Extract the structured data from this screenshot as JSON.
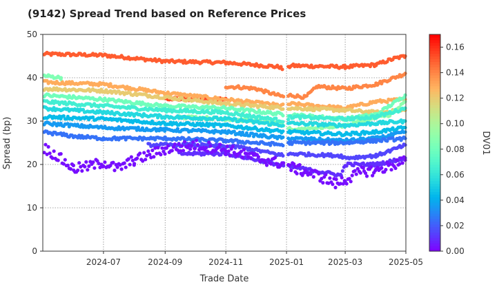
{
  "chart_data": {
    "type": "scatter",
    "title": "(9142)   Spread Trend based on Reference Prices",
    "xlabel": "Trade Date",
    "ylabel": "Spread (bp)",
    "colorbar_label": "DV01",
    "xlim": [
      "2024-05-01",
      "2025-05-01"
    ],
    "ylim": [
      0,
      50
    ],
    "x_ticks": [
      "2024-07",
      "2024-09",
      "2024-11",
      "2025-01",
      "2025-03",
      "2025-05"
    ],
    "y_ticks": [
      0,
      10,
      20,
      30,
      40,
      50
    ],
    "colorbar_range": [
      0,
      0.17
    ],
    "colorbar_ticks": [
      "0.00",
      "0.02",
      "0.04",
      "0.06",
      "0.08",
      "0.10",
      "0.12",
      "0.14",
      "0.16"
    ],
    "colormap": "rainbow",
    "grid": true,
    "series": [
      {
        "dv01": 0.15,
        "points": [
          [
            "2024-05-01",
            45.5
          ],
          [
            "2024-07-01",
            45.2
          ],
          [
            "2024-09-01",
            43.8
          ],
          [
            "2024-11-01",
            43.5
          ],
          [
            "2024-12-25",
            42.5
          ],
          [
            "2024-12-31",
            41.5
          ],
          [
            "2025-01-05",
            42.8
          ],
          [
            "2025-03-01",
            42.5
          ],
          [
            "2025-04-01",
            43.0
          ],
          [
            "2025-04-20",
            44.5
          ],
          [
            "2025-05-01",
            45.0
          ]
        ]
      },
      {
        "dv01": 0.14,
        "points": [
          [
            "2024-11-01",
            38.0
          ],
          [
            "2024-11-15",
            37.8
          ],
          [
            "2024-12-01",
            37.5
          ],
          [
            "2024-12-15",
            36.5
          ],
          [
            "2024-12-31",
            35.5
          ],
          [
            "2025-01-05",
            36.0
          ],
          [
            "2025-01-20",
            35.5
          ],
          [
            "2025-02-01",
            38.0
          ],
          [
            "2025-03-01",
            37.5
          ],
          [
            "2025-04-01",
            38.5
          ],
          [
            "2025-05-01",
            41.0
          ]
        ]
      },
      {
        "dv01": 0.155,
        "points": [
          [
            "2024-09-01",
            35.3
          ],
          [
            "2024-10-01",
            35.0
          ],
          [
            "2024-11-01",
            35.0
          ]
        ]
      },
      {
        "dv01": 0.13,
        "points": [
          [
            "2024-05-01",
            39.0
          ],
          [
            "2024-07-01",
            38.5
          ],
          [
            "2024-09-01",
            36.5
          ],
          [
            "2024-11-01",
            35.0
          ],
          [
            "2024-12-31",
            33.5
          ],
          [
            "2025-01-05",
            34.0
          ],
          [
            "2025-03-01",
            33.0
          ],
          [
            "2025-04-01",
            34.5
          ],
          [
            "2025-05-01",
            35.0
          ]
        ]
      },
      {
        "dv01": 0.12,
        "points": [
          [
            "2024-05-01",
            37.5
          ],
          [
            "2024-07-01",
            37.0
          ],
          [
            "2024-09-01",
            35.5
          ],
          [
            "2024-11-01",
            34.0
          ],
          [
            "2024-12-31",
            33.0
          ],
          [
            "2025-01-05",
            33.0
          ],
          [
            "2025-03-01",
            32.5
          ],
          [
            "2025-04-01",
            32.0
          ],
          [
            "2025-05-01",
            32.5
          ]
        ]
      },
      {
        "dv01": 0.085,
        "points": [
          [
            "2024-05-01",
            40.5
          ],
          [
            "2024-05-20",
            40.0
          ]
        ]
      },
      {
        "dv01": 0.08,
        "points": [
          [
            "2024-05-01",
            36.0
          ],
          [
            "2024-07-01",
            35.0
          ],
          [
            "2024-09-01",
            33.5
          ],
          [
            "2024-11-01",
            33.0
          ],
          [
            "2024-12-31",
            31.5
          ],
          [
            "2025-01-05",
            31.5
          ],
          [
            "2025-03-01",
            30.5
          ],
          [
            "2025-04-01",
            31.5
          ],
          [
            "2025-05-01",
            36.0
          ]
        ]
      },
      {
        "dv01": 0.09,
        "points": [
          [
            "2024-09-15",
            31.0
          ],
          [
            "2024-11-01",
            30.5
          ],
          [
            "2024-12-01",
            30.0
          ],
          [
            "2024-12-31",
            29.0
          ],
          [
            "2025-01-05",
            28.0
          ],
          [
            "2025-03-01",
            29.0
          ],
          [
            "2025-04-15",
            31.5
          ],
          [
            "2025-05-01",
            34.5
          ]
        ]
      },
      {
        "dv01": 0.065,
        "points": [
          [
            "2024-05-01",
            34.5
          ],
          [
            "2024-07-01",
            33.5
          ],
          [
            "2024-09-01",
            32.5
          ],
          [
            "2024-11-01",
            32.0
          ],
          [
            "2024-12-31",
            30.0
          ],
          [
            "2025-01-05",
            31.0
          ],
          [
            "2025-03-01",
            30.5
          ],
          [
            "2025-04-01",
            31.0
          ],
          [
            "2025-05-01",
            33.0
          ]
        ]
      },
      {
        "dv01": 0.055,
        "points": [
          [
            "2024-05-01",
            33.0
          ],
          [
            "2024-07-01",
            32.0
          ],
          [
            "2024-09-01",
            31.0
          ],
          [
            "2024-11-01",
            30.5
          ],
          [
            "2024-12-31",
            29.0
          ],
          [
            "2025-01-05",
            29.5
          ],
          [
            "2025-03-01",
            29.0
          ],
          [
            "2025-04-01",
            29.5
          ],
          [
            "2025-05-01",
            30.0
          ]
        ]
      },
      {
        "dv01": 0.045,
        "points": [
          [
            "2024-05-01",
            31.0
          ],
          [
            "2024-07-01",
            30.5
          ],
          [
            "2024-09-01",
            29.5
          ],
          [
            "2024-11-01",
            29.0
          ],
          [
            "2024-12-31",
            27.5
          ],
          [
            "2025-01-05",
            27.5
          ],
          [
            "2025-03-01",
            27.0
          ],
          [
            "2025-04-01",
            27.5
          ],
          [
            "2025-05-01",
            28.5
          ]
        ]
      },
      {
        "dv01": 0.035,
        "points": [
          [
            "2024-05-01",
            29.5
          ],
          [
            "2024-07-01",
            28.5
          ],
          [
            "2024-09-01",
            28.0
          ],
          [
            "2024-11-01",
            27.5
          ],
          [
            "2024-12-31",
            26.0
          ],
          [
            "2025-01-05",
            26.0
          ],
          [
            "2025-03-01",
            25.5
          ],
          [
            "2025-04-01",
            26.0
          ],
          [
            "2025-05-01",
            27.5
          ]
        ]
      },
      {
        "dv01": 0.025,
        "points": [
          [
            "2024-05-01",
            27.5
          ],
          [
            "2024-06-01",
            26.5
          ],
          [
            "2024-07-01",
            26.0
          ],
          [
            "2024-09-01",
            26.0
          ],
          [
            "2024-11-01",
            25.5
          ],
          [
            "2024-12-31",
            24.5
          ],
          [
            "2025-01-05",
            25.0
          ],
          [
            "2025-03-01",
            25.0
          ],
          [
            "2025-04-01",
            25.5
          ],
          [
            "2025-05-01",
            26.0
          ]
        ]
      },
      {
        "dv01": 0.015,
        "points": [
          [
            "2024-08-15",
            24.5
          ],
          [
            "2024-10-01",
            24.5
          ],
          [
            "2024-11-15",
            24.0
          ],
          [
            "2024-12-31",
            22.0
          ],
          [
            "2025-01-05",
            22.5
          ],
          [
            "2025-02-25",
            22.0
          ],
          [
            "2025-03-01",
            21.5
          ],
          [
            "2025-04-01",
            22.0
          ],
          [
            "2025-05-01",
            24.5
          ]
        ]
      },
      {
        "dv01": 0.01,
        "points": [
          [
            "2024-09-15",
            22.5
          ],
          [
            "2024-11-01",
            22.5
          ],
          [
            "2024-12-15",
            20.5
          ],
          [
            "2024-12-31",
            19.5
          ],
          [
            "2025-01-05",
            19.5
          ],
          [
            "2025-02-25",
            17.5
          ],
          [
            "2025-03-01",
            20.0
          ],
          [
            "2025-04-01",
            20.0
          ],
          [
            "2025-05-01",
            21.5
          ]
        ]
      },
      {
        "dv01": 0.003,
        "points": [
          [
            "2024-05-01",
            24.0
          ],
          [
            "2024-05-15",
            22.0
          ],
          [
            "2024-06-01",
            19.0
          ],
          [
            "2024-06-15",
            19.5
          ],
          [
            "2024-07-01",
            20.5
          ],
          [
            "2024-07-15",
            19.0
          ],
          [
            "2024-08-01",
            21.0
          ],
          [
            "2024-09-01",
            23.5
          ],
          [
            "2024-10-01",
            24.5
          ],
          [
            "2024-11-01",
            23.5
          ],
          [
            "2024-12-01",
            21.5
          ],
          [
            "2024-12-31",
            20.0
          ],
          [
            "2025-01-10",
            19.0
          ],
          [
            "2025-02-01",
            17.5
          ],
          [
            "2025-02-20",
            15.5
          ],
          [
            "2025-03-01",
            16.5
          ],
          [
            "2025-03-20",
            18.5
          ],
          [
            "2025-04-01",
            18.5
          ],
          [
            "2025-05-01",
            21.0
          ]
        ]
      }
    ]
  }
}
